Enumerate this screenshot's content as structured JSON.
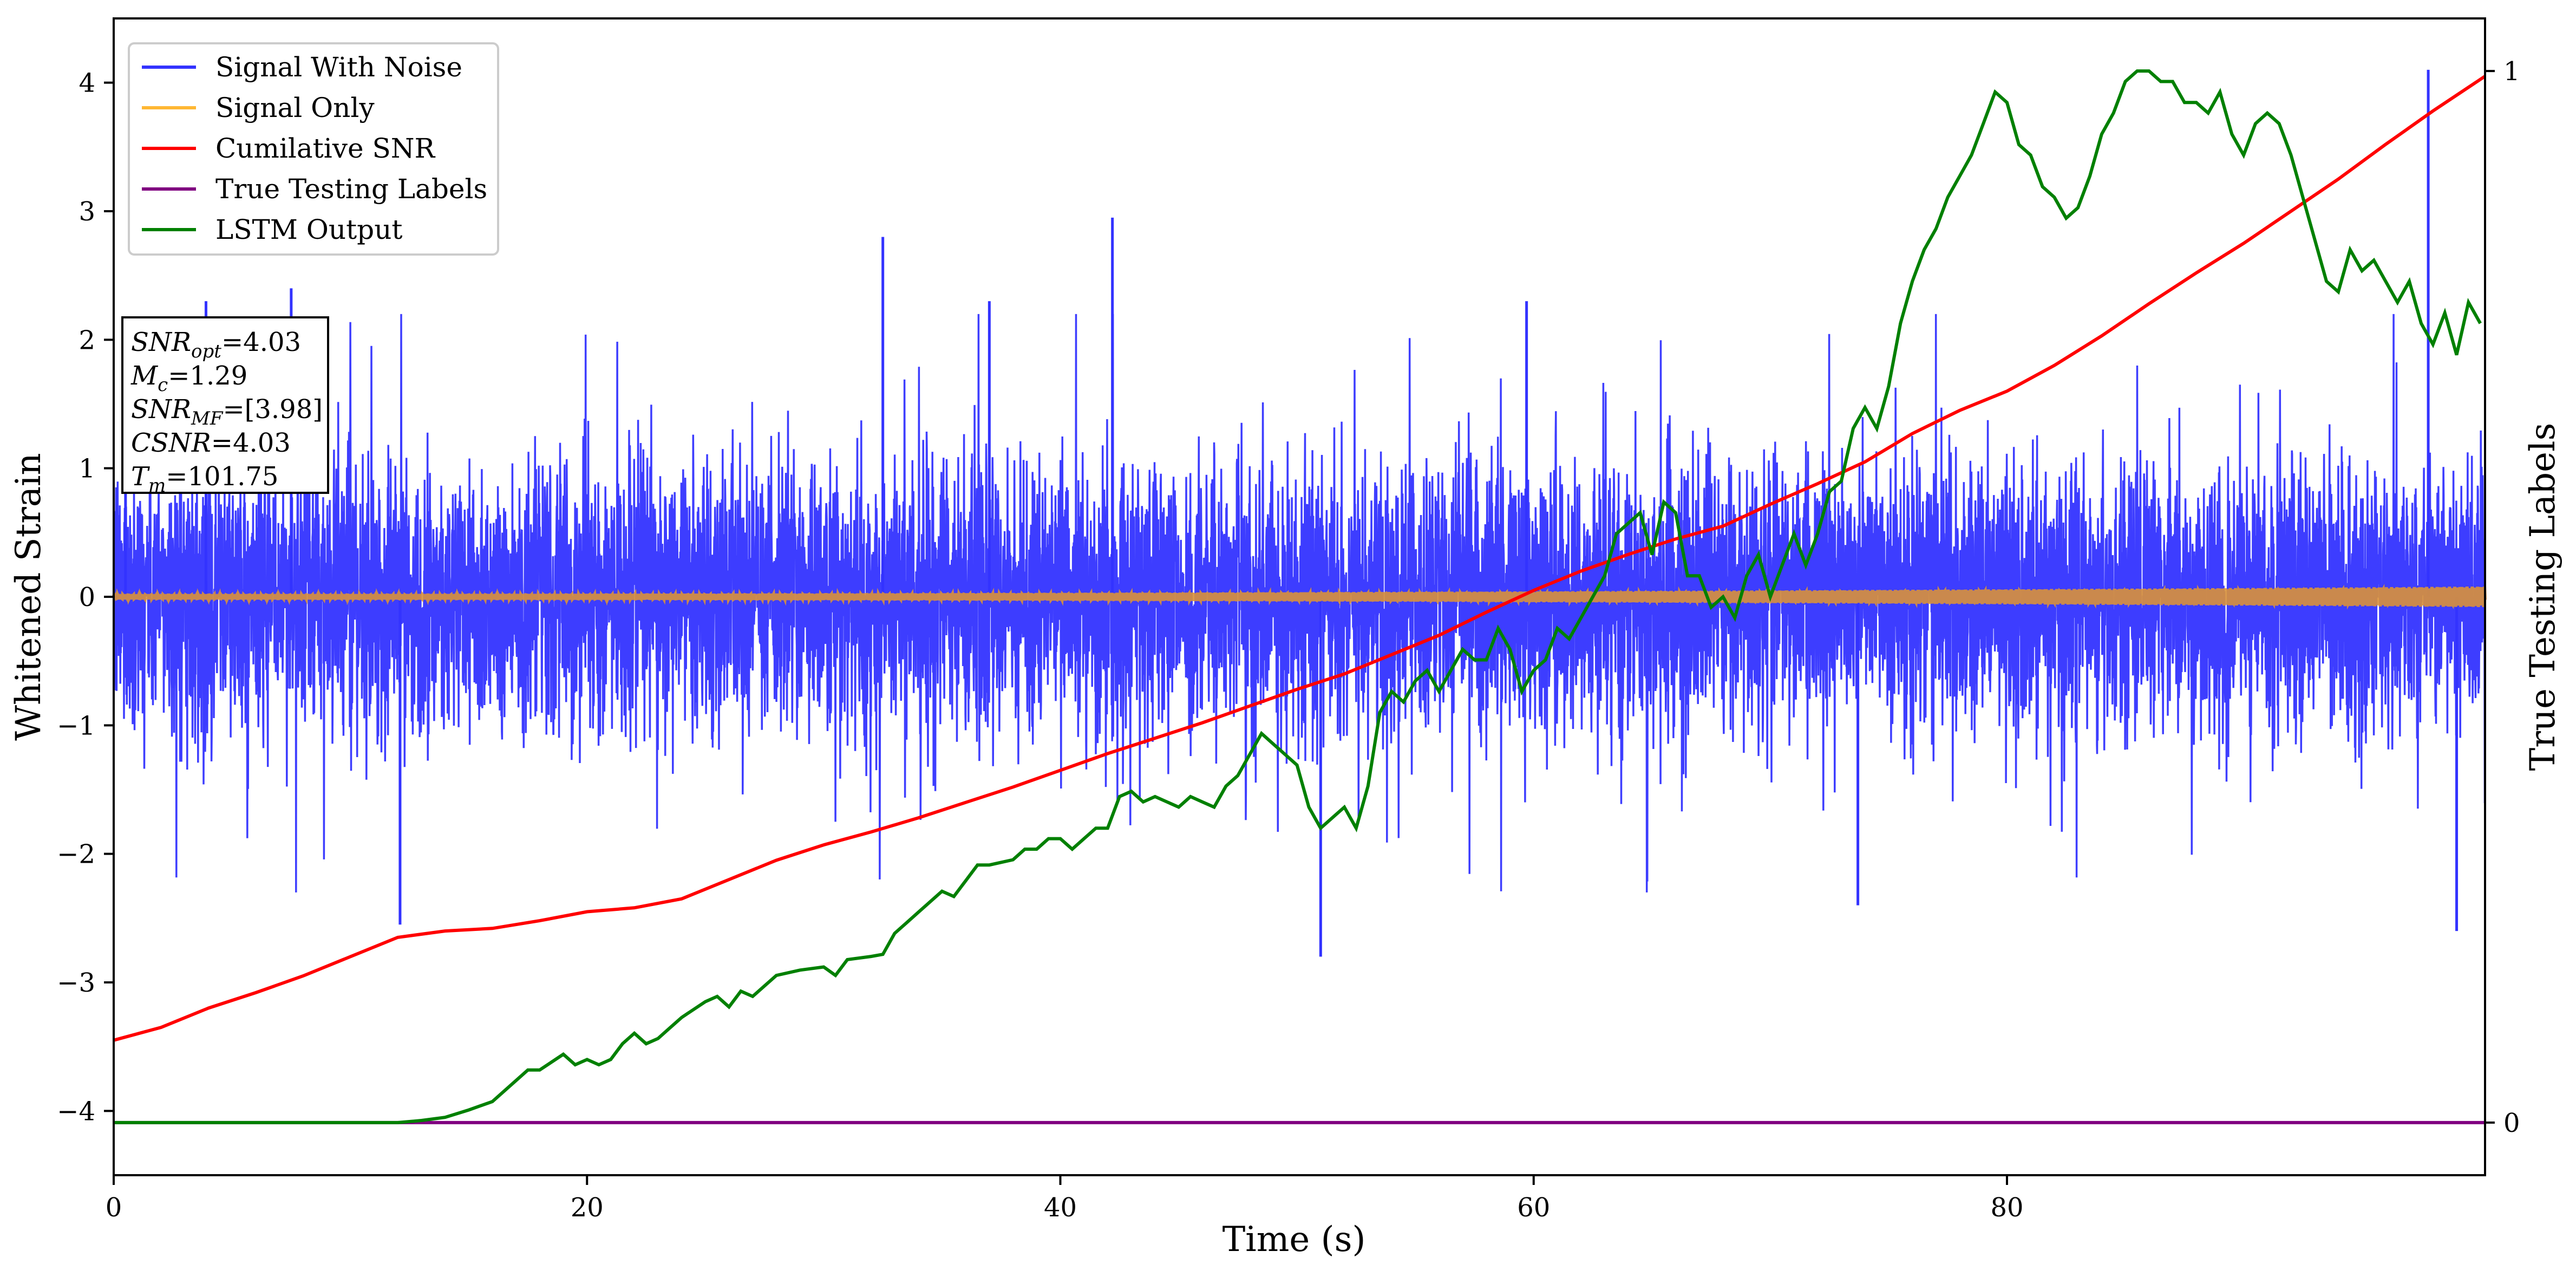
{
  "chart_data": {
    "type": "line",
    "xlabel": "Time (s)",
    "ylabel": "Whitened Strain",
    "y2label": "True Testing Labels",
    "xlim": [
      0,
      100.2
    ],
    "ylim": [
      -4.5,
      4.5
    ],
    "y2lim": [
      -0.05,
      1.05
    ],
    "x_ticks": [
      0,
      20,
      40,
      60,
      80
    ],
    "y_ticks": [
      -4,
      -3,
      -2,
      -1,
      0,
      1,
      2,
      3,
      4
    ],
    "y2_ticks": [
      0,
      1
    ],
    "grid": false,
    "legend_position": "upper left",
    "legend": [
      {
        "label": "Signal With Noise",
        "color": "#3333ff"
      },
      {
        "label": "Signal Only",
        "color": "#ffb733"
      },
      {
        "label": "Cumilative SNR",
        "color": "#ff0000"
      },
      {
        "label": "True Testing Labels",
        "color": "#800080"
      },
      {
        "label": "LSTM Output",
        "color": "#008000"
      }
    ],
    "annotation": [
      {
        "base": "SNR",
        "sub": "opt",
        "value": "=4.03"
      },
      {
        "base": "M",
        "sub": "c",
        "value": "=1.29"
      },
      {
        "base": "SNR",
        "sub": "MF",
        "value": "=[3.98]"
      },
      {
        "base": "CSNR",
        "sub": "",
        "value": "=4.03"
      },
      {
        "base": "T",
        "sub": "m",
        "value": "=101.75"
      }
    ],
    "series": [
      {
        "name": "Signal With Noise",
        "axis": "left",
        "description": "dense noisy strain, typical range -2..2 with spikes",
        "peaks": [
          {
            "x": 0.5,
            "y": 1.6
          },
          {
            "x": 3.9,
            "y": 2.3
          },
          {
            "x": 7.5,
            "y": 2.4
          },
          {
            "x": 12.1,
            "y": -2.55
          },
          {
            "x": 32.5,
            "y": 2.8
          },
          {
            "x": 37.0,
            "y": 2.3
          },
          {
            "x": 42.2,
            "y": 2.95
          },
          {
            "x": 51.0,
            "y": -2.8
          },
          {
            "x": 59.7,
            "y": 2.3
          },
          {
            "x": 73.7,
            "y": -2.4
          },
          {
            "x": 97.8,
            "y": 4.1
          },
          {
            "x": 99.0,
            "y": -2.6
          }
        ]
      },
      {
        "name": "Signal Only",
        "axis": "left",
        "description": "chirp with amplitude growing from ~0.02 to ~0.08"
      },
      {
        "name": "Cumilative SNR",
        "axis": "left",
        "points": [
          [
            0,
            -3.45
          ],
          [
            2,
            -3.35
          ],
          [
            4,
            -3.2
          ],
          [
            6,
            -3.08
          ],
          [
            8,
            -2.95
          ],
          [
            10,
            -2.8
          ],
          [
            12,
            -2.65
          ],
          [
            14,
            -2.6
          ],
          [
            16,
            -2.58
          ],
          [
            18,
            -2.52
          ],
          [
            20,
            -2.45
          ],
          [
            22,
            -2.42
          ],
          [
            24,
            -2.35
          ],
          [
            26,
            -2.2
          ],
          [
            28,
            -2.05
          ],
          [
            30,
            -1.93
          ],
          [
            32,
            -1.83
          ],
          [
            34,
            -1.72
          ],
          [
            36,
            -1.6
          ],
          [
            38,
            -1.48
          ],
          [
            40,
            -1.35
          ],
          [
            42,
            -1.22
          ],
          [
            44,
            -1.1
          ],
          [
            46,
            -0.98
          ],
          [
            48,
            -0.85
          ],
          [
            50,
            -0.72
          ],
          [
            52,
            -0.6
          ],
          [
            54,
            -0.45
          ],
          [
            56,
            -0.3
          ],
          [
            58,
            -0.12
          ],
          [
            60,
            0.05
          ],
          [
            62,
            0.2
          ],
          [
            64,
            0.33
          ],
          [
            66,
            0.45
          ],
          [
            68,
            0.55
          ],
          [
            70,
            0.72
          ],
          [
            72,
            0.88
          ],
          [
            74,
            1.05
          ],
          [
            76,
            1.27
          ],
          [
            78,
            1.45
          ],
          [
            80,
            1.6
          ],
          [
            82,
            1.8
          ],
          [
            84,
            2.03
          ],
          [
            86,
            2.28
          ],
          [
            88,
            2.52
          ],
          [
            90,
            2.75
          ],
          [
            92,
            3.0
          ],
          [
            94,
            3.25
          ],
          [
            96,
            3.52
          ],
          [
            98,
            3.78
          ],
          [
            100.2,
            4.05
          ]
        ]
      },
      {
        "name": "True Testing Labels",
        "axis": "right",
        "points": [
          [
            0,
            0.0
          ],
          [
            100.2,
            0.0
          ]
        ]
      },
      {
        "name": "LSTM Output",
        "axis": "right",
        "points": [
          [
            0,
            0.0
          ],
          [
            12,
            0.0
          ],
          [
            13,
            0.002
          ],
          [
            14,
            0.005
          ],
          [
            15,
            0.012
          ],
          [
            16,
            0.02
          ],
          [
            17,
            0.04
          ],
          [
            17.5,
            0.05
          ],
          [
            18,
            0.05
          ],
          [
            19,
            0.065
          ],
          [
            19.5,
            0.055
          ],
          [
            20,
            0.06
          ],
          [
            20.5,
            0.055
          ],
          [
            21,
            0.06
          ],
          [
            21.5,
            0.075
          ],
          [
            22,
            0.085
          ],
          [
            22.5,
            0.075
          ],
          [
            23,
            0.08
          ],
          [
            23.5,
            0.09
          ],
          [
            24,
            0.1
          ],
          [
            25,
            0.115
          ],
          [
            25.5,
            0.12
          ],
          [
            26,
            0.11
          ],
          [
            26.5,
            0.125
          ],
          [
            27,
            0.12
          ],
          [
            27.5,
            0.13
          ],
          [
            28,
            0.14
          ],
          [
            29,
            0.145
          ],
          [
            30,
            0.148
          ],
          [
            30.5,
            0.14
          ],
          [
            31,
            0.155
          ],
          [
            32,
            0.158
          ],
          [
            32.5,
            0.16
          ],
          [
            33,
            0.18
          ],
          [
            33.5,
            0.19
          ],
          [
            34,
            0.2
          ],
          [
            35,
            0.22
          ],
          [
            35.5,
            0.215
          ],
          [
            36,
            0.23
          ],
          [
            36.5,
            0.245
          ],
          [
            37,
            0.245
          ],
          [
            38,
            0.25
          ],
          [
            38.5,
            0.26
          ],
          [
            39,
            0.26
          ],
          [
            39.5,
            0.27
          ],
          [
            40,
            0.27
          ],
          [
            40.5,
            0.26
          ],
          [
            41,
            0.27
          ],
          [
            41.5,
            0.28
          ],
          [
            42,
            0.28
          ],
          [
            42.5,
            0.31
          ],
          [
            43,
            0.315
          ],
          [
            43.5,
            0.305
          ],
          [
            44,
            0.31
          ],
          [
            45,
            0.3
          ],
          [
            45.5,
            0.31
          ],
          [
            46,
            0.305
          ],
          [
            46.5,
            0.3
          ],
          [
            47,
            0.32
          ],
          [
            47.5,
            0.33
          ],
          [
            48,
            0.35
          ],
          [
            48.5,
            0.37
          ],
          [
            49,
            0.36
          ],
          [
            49.5,
            0.35
          ],
          [
            50,
            0.34
          ],
          [
            50.5,
            0.3
          ],
          [
            51,
            0.28
          ],
          [
            51.5,
            0.29
          ],
          [
            52,
            0.3
          ],
          [
            52.5,
            0.28
          ],
          [
            53,
            0.32
          ],
          [
            53.5,
            0.39
          ],
          [
            54,
            0.41
          ],
          [
            54.5,
            0.4
          ],
          [
            55,
            0.42
          ],
          [
            55.5,
            0.43
          ],
          [
            56,
            0.41
          ],
          [
            56.5,
            0.43
          ],
          [
            57,
            0.45
          ],
          [
            57.5,
            0.44
          ],
          [
            58,
            0.44
          ],
          [
            58.5,
            0.47
          ],
          [
            59,
            0.45
          ],
          [
            59.5,
            0.41
          ],
          [
            60,
            0.43
          ],
          [
            60.5,
            0.44
          ],
          [
            61,
            0.47
          ],
          [
            61.5,
            0.46
          ],
          [
            62,
            0.48
          ],
          [
            62.5,
            0.5
          ],
          [
            63,
            0.52
          ],
          [
            63.5,
            0.56
          ],
          [
            64,
            0.57
          ],
          [
            64.5,
            0.58
          ],
          [
            65,
            0.54
          ],
          [
            65.5,
            0.59
          ],
          [
            66,
            0.58
          ],
          [
            66.5,
            0.52
          ],
          [
            67,
            0.52
          ],
          [
            67.5,
            0.49
          ],
          [
            68,
            0.5
          ],
          [
            68.5,
            0.48
          ],
          [
            69,
            0.52
          ],
          [
            69.5,
            0.54
          ],
          [
            70,
            0.5
          ],
          [
            70.5,
            0.53
          ],
          [
            71,
            0.56
          ],
          [
            71.5,
            0.53
          ],
          [
            72,
            0.56
          ],
          [
            72.5,
            0.6
          ],
          [
            73,
            0.61
          ],
          [
            73.5,
            0.66
          ],
          [
            74,
            0.68
          ],
          [
            74.5,
            0.66
          ],
          [
            75,
            0.7
          ],
          [
            75.5,
            0.76
          ],
          [
            76,
            0.8
          ],
          [
            76.5,
            0.83
          ],
          [
            77,
            0.85
          ],
          [
            77.5,
            0.88
          ],
          [
            78,
            0.9
          ],
          [
            78.5,
            0.92
          ],
          [
            79,
            0.95
          ],
          [
            79.5,
            0.98
          ],
          [
            80,
            0.97
          ],
          [
            80.5,
            0.93
          ],
          [
            81,
            0.92
          ],
          [
            81.5,
            0.89
          ],
          [
            82,
            0.88
          ],
          [
            82.5,
            0.86
          ],
          [
            83,
            0.87
          ],
          [
            83.5,
            0.9
          ],
          [
            84,
            0.94
          ],
          [
            84.5,
            0.96
          ],
          [
            85,
            0.99
          ],
          [
            85.5,
            1.0
          ],
          [
            86,
            1.0
          ],
          [
            86.5,
            0.99
          ],
          [
            87,
            0.99
          ],
          [
            87.5,
            0.97
          ],
          [
            88,
            0.97
          ],
          [
            88.5,
            0.96
          ],
          [
            89,
            0.98
          ],
          [
            89.5,
            0.94
          ],
          [
            90,
            0.92
          ],
          [
            90.5,
            0.95
          ],
          [
            91,
            0.96
          ],
          [
            91.5,
            0.95
          ],
          [
            92,
            0.92
          ],
          [
            92.5,
            0.88
          ],
          [
            93,
            0.84
          ],
          [
            93.5,
            0.8
          ],
          [
            94,
            0.79
          ],
          [
            94.5,
            0.83
          ],
          [
            95,
            0.81
          ],
          [
            95.5,
            0.82
          ],
          [
            96,
            0.8
          ],
          [
            96.5,
            0.78
          ],
          [
            97,
            0.8
          ],
          [
            97.5,
            0.76
          ],
          [
            98,
            0.74
          ],
          [
            98.5,
            0.77
          ],
          [
            99,
            0.73
          ],
          [
            99.5,
            0.78
          ],
          [
            100,
            0.76
          ]
        ]
      }
    ]
  }
}
